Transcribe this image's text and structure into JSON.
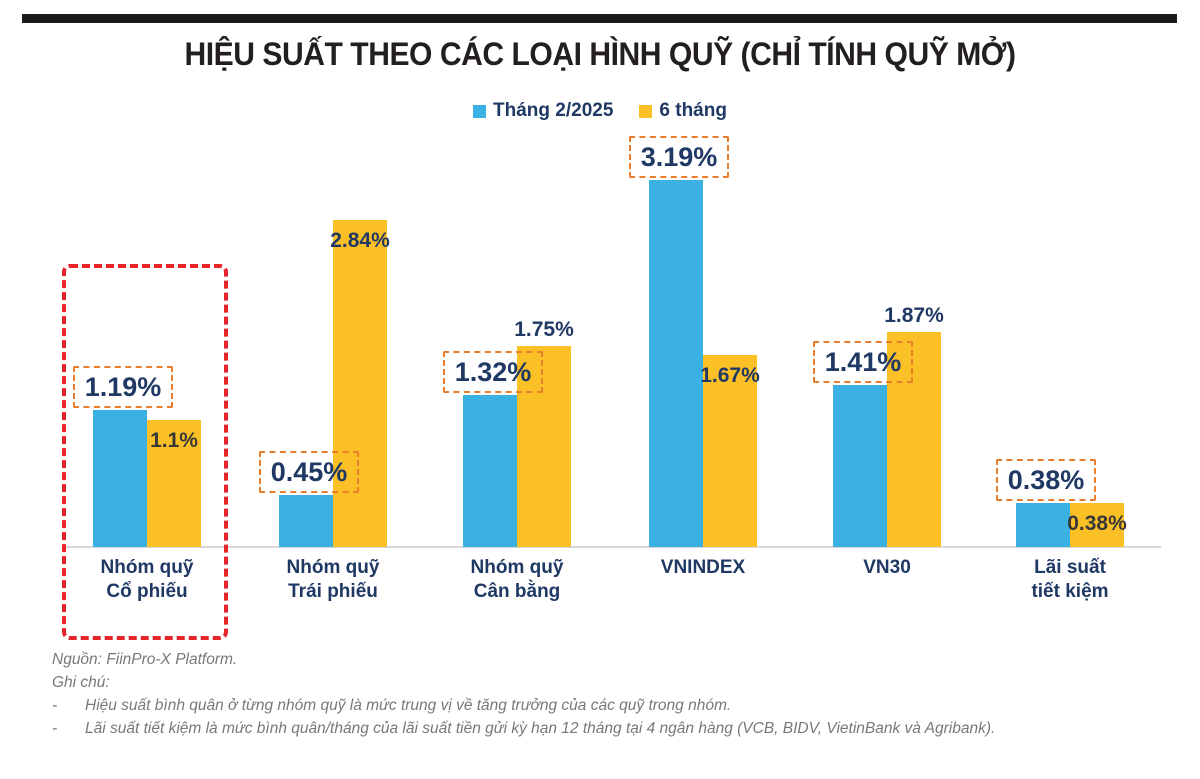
{
  "header": {
    "title": "HIỆU SUẤT THEO CÁC LOẠI HÌNH QUỸ (CHỈ TÍNH QUỸ MỞ)"
  },
  "legend": [
    {
      "label": "Tháng 2/2025",
      "color": "#3AB1E2"
    },
    {
      "label": "6 tháng",
      "color": "#FCC027"
    }
  ],
  "chart_data": {
    "type": "bar",
    "title": "HIỆU SUẤT THEO CÁC LOẠI HÌNH QUỸ (CHỈ TÍNH QUỸ MỞ)",
    "categories": [
      [
        "Nhóm quỹ",
        "Cổ phiếu"
      ],
      [
        "Nhóm quỹ",
        "Trái phiếu"
      ],
      [
        "Nhóm quỹ",
        "Cân bằng"
      ],
      [
        "VNINDEX"
      ],
      [
        "VN30"
      ],
      [
        "Lãi suất",
        "tiết kiệm"
      ]
    ],
    "series": [
      {
        "name": "Tháng 2/2025",
        "color": "#3AB1E2",
        "values": [
          1.19,
          0.45,
          1.32,
          3.19,
          1.41,
          0.38
        ],
        "labels": [
          "1.19%",
          "0.45%",
          "1.32%",
          "3.19%",
          "1.41%",
          "0.38%"
        ],
        "label_style": "orange-dashed-box",
        "label_color": "#1F3864"
      },
      {
        "name": "6 tháng",
        "color": "#FCC027",
        "values": [
          1.1,
          2.84,
          1.75,
          1.67,
          1.87,
          0.38
        ],
        "labels": [
          "1.1%",
          "2.84%",
          "1.75%",
          "1.67%",
          "1.87%",
          "0.38%"
        ],
        "label_placement": [
          "inside",
          "inside",
          "above",
          "inside",
          "above",
          "inside"
        ],
        "label_colors": [
          "#383838",
          "#203864",
          "#203864",
          "#203864",
          "#203864",
          "#383838"
        ]
      }
    ],
    "ylim": [
      0,
      3.5
    ],
    "grid": false,
    "legend_position": "top",
    "highlight": {
      "category_index": 0,
      "style": "red-dashed-box"
    }
  },
  "footer": {
    "source": "Nguồn: FiinPro-X Platform.",
    "notes_title": "Ghi chú:",
    "bullet": "-",
    "notes": [
      "Hiệu suất bình quân ở từng nhóm quỹ là mức trung vị về tăng trưởng của các quỹ trong nhóm.",
      "Lãi suất tiết kiệm là mức bình quân/tháng của lãi suất tiền gửi kỳ hạn 12 tháng tại 4 ngân hàng (VCB, BIDV, VietinBank và Agribank)."
    ]
  }
}
